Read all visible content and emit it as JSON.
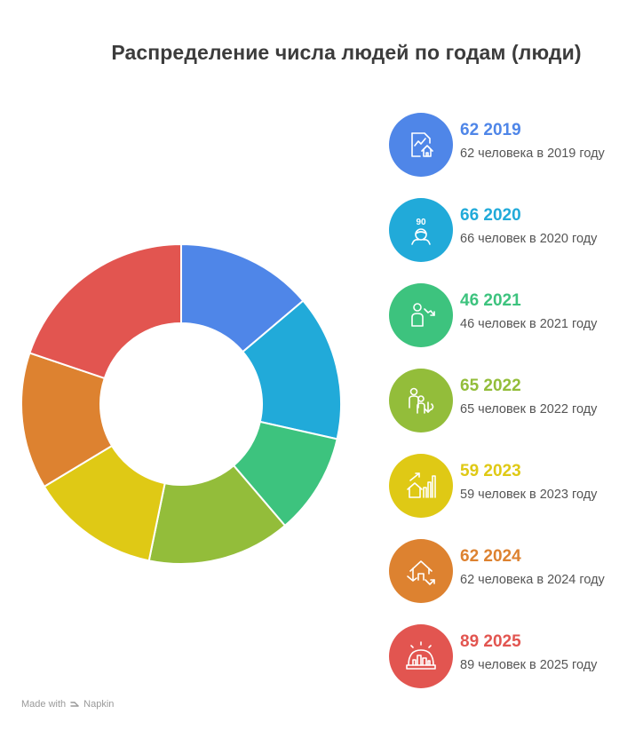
{
  "title": "Распределение числа людей по годам (люди)",
  "footer": {
    "made_with": "Made with",
    "brand": "Napkin"
  },
  "colors": [
    "#4f86e8",
    "#21aad9",
    "#3dc37e",
    "#93bd3a",
    "#dfc915",
    "#dd8230",
    "#e25550"
  ],
  "chart_data": {
    "type": "pie",
    "donut": true,
    "title": "Распределение числа людей по годам (люди)",
    "categories": [
      "2019",
      "2020",
      "2021",
      "2022",
      "2023",
      "2024",
      "2025"
    ],
    "values": [
      62,
      66,
      46,
      65,
      59,
      62,
      89
    ],
    "legend_placement": "right"
  },
  "legend": [
    {
      "value": "62 2019",
      "desc": "62 человека в 2019 году",
      "icon": "chart-house-icon"
    },
    {
      "value": "66 2020",
      "desc": "66 человек в 2020 году",
      "icon": "elderly-person-icon"
    },
    {
      "value": "46 2021",
      "desc": "46 человек в 2021 году",
      "icon": "person-decline-icon"
    },
    {
      "value": "65 2022",
      "desc": "65 человек в 2022 году",
      "icon": "family-decline-icon"
    },
    {
      "value": "59 2023",
      "desc": "59 человек в 2023 году",
      "icon": "house-growth-icon"
    },
    {
      "value": "62 2024",
      "desc": "62 человека в 2024 году",
      "icon": "house-decline-icon"
    },
    {
      "value": "89 2025",
      "desc": "89 человек в 2025 году",
      "icon": "city-dome-icon"
    }
  ]
}
